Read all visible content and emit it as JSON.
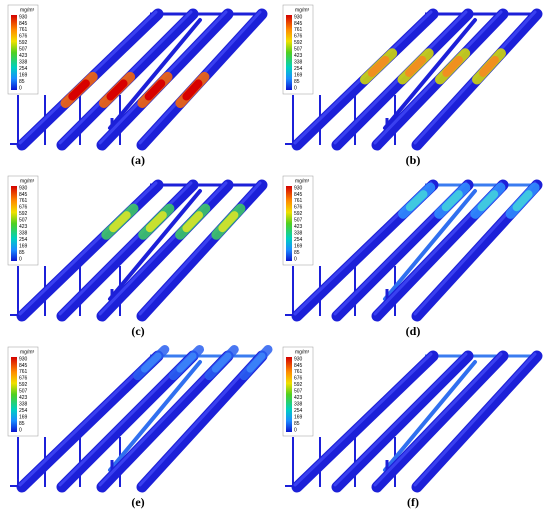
{
  "figure": {
    "legend_unit": "mg/m³",
    "legend_ticks": [
      "930",
      "845",
      "761",
      "676",
      "592",
      "507",
      "423",
      "338",
      "254",
      "169",
      "85",
      "0"
    ],
    "panels": [
      {
        "label": "(a)"
      },
      {
        "label": "(b)"
      },
      {
        "label": "(c)"
      },
      {
        "label": "(d)"
      },
      {
        "label": "(e)"
      },
      {
        "label": "(f)"
      }
    ]
  }
}
